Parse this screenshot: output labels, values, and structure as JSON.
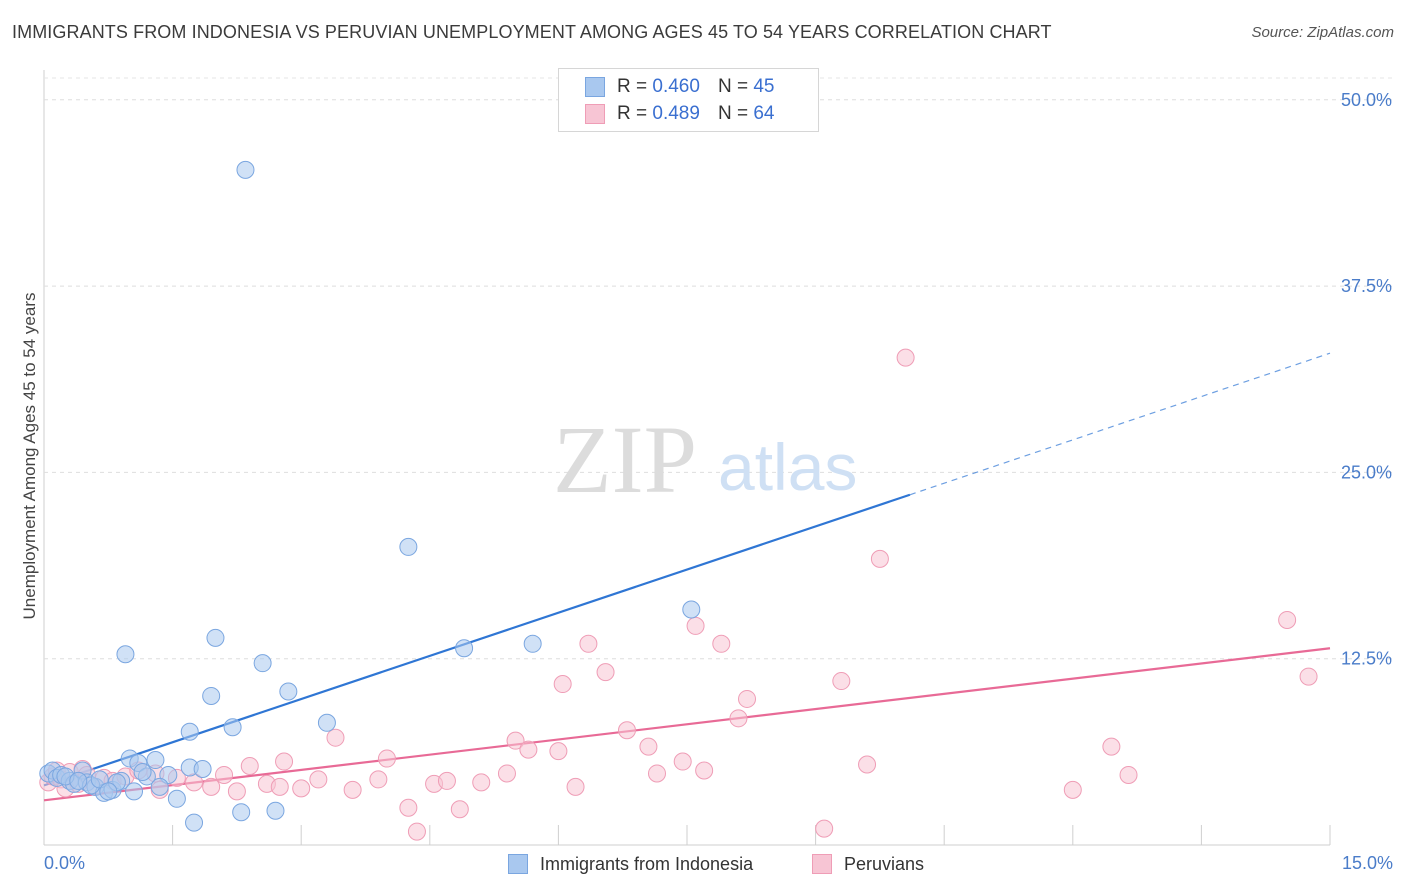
{
  "header": {
    "title": "IMMIGRANTS FROM INDONESIA VS PERUVIAN UNEMPLOYMENT AMONG AGES 45 TO 54 YEARS CORRELATION CHART",
    "source": "Source: ZipAtlas.com"
  },
  "watermark": {
    "zip": "ZIP",
    "atlas": "atlas"
  },
  "legend": {
    "rows": [
      {
        "r_label": "R =",
        "r_value": "0.460",
        "n_label": "N =",
        "n_value": "45"
      },
      {
        "r_label": "R =",
        "r_value": "0.489",
        "n_label": "N =",
        "n_value": "64"
      }
    ]
  },
  "bottom_legend": {
    "series1": "Immigrants from Indonesia",
    "series2": "Peruvians"
  },
  "colors": {
    "blue_fill": "#a9c8ef",
    "blue_stroke": "#7aa6e0",
    "blue_line": "#2f76d4",
    "pink_fill": "#f7c5d4",
    "pink_stroke": "#ef9db6",
    "pink_line": "#e86a96",
    "axis_label": "#4a7cc9"
  },
  "chart_data": {
    "type": "scatter",
    "title": "IMMIGRANTS FROM INDONESIA VS PERUVIAN UNEMPLOYMENT AMONG AGES 45 TO 54 YEARS CORRELATION CHART",
    "xlabel": "",
    "ylabel": "Unemployment Among Ages 45 to 54 years",
    "xlim": [
      0,
      15
    ],
    "ylim": [
      0,
      52
    ],
    "x_tick_labels": [
      "0.0%",
      "15.0%"
    ],
    "y_ticks": [
      12.5,
      25.0,
      37.5,
      50.0
    ],
    "y_tick_labels": [
      "12.5%",
      "25.0%",
      "37.5%",
      "50.0%"
    ],
    "grid": true,
    "series": [
      {
        "name": "Immigrants from Indonesia",
        "color": "#a9c8ef",
        "points": [
          [
            0.05,
            4.8
          ],
          [
            0.1,
            5.0
          ],
          [
            0.15,
            4.5
          ],
          [
            0.2,
            4.7
          ],
          [
            0.3,
            4.3
          ],
          [
            0.35,
            4.1
          ],
          [
            0.45,
            5.0
          ],
          [
            0.5,
            4.2
          ],
          [
            0.6,
            3.9
          ],
          [
            0.7,
            3.5
          ],
          [
            0.8,
            3.7
          ],
          [
            0.9,
            4.3
          ],
          [
            1.0,
            5.8
          ],
          [
            1.05,
            3.6
          ],
          [
            1.1,
            5.5
          ],
          [
            1.2,
            4.6
          ],
          [
            1.3,
            5.7
          ],
          [
            1.45,
            4.7
          ],
          [
            1.55,
            3.1
          ],
          [
            1.7,
            5.2
          ],
          [
            1.75,
            1.5
          ],
          [
            1.95,
            10.0
          ],
          [
            2.0,
            13.9
          ],
          [
            2.2,
            7.9
          ],
          [
            2.3,
            2.2
          ],
          [
            2.55,
            12.2
          ],
          [
            2.7,
            2.3
          ],
          [
            2.85,
            10.3
          ],
          [
            3.3,
            8.2
          ],
          [
            4.25,
            20.0
          ],
          [
            4.9,
            13.2
          ],
          [
            5.7,
            13.5
          ],
          [
            7.55,
            15.8
          ],
          [
            2.35,
            45.3
          ],
          [
            0.95,
            12.8
          ],
          [
            1.7,
            7.6
          ],
          [
            1.85,
            5.1
          ],
          [
            0.25,
            4.6
          ],
          [
            0.55,
            4.0
          ],
          [
            0.65,
            4.4
          ],
          [
            0.85,
            4.2
          ],
          [
            1.15,
            4.9
          ],
          [
            0.4,
            4.3
          ],
          [
            1.35,
            3.9
          ],
          [
            0.75,
            3.6
          ]
        ],
        "trend": {
          "x": [
            0.0,
            10.1
          ],
          "y": [
            4.0,
            23.5
          ],
          "dashed_extension": {
            "x": [
              10.1,
              15.0
            ],
            "y": [
              23.5,
              33.0
            ]
          }
        }
      },
      {
        "name": "Peruvians",
        "color": "#f7c5d4",
        "points": [
          [
            0.05,
            4.2
          ],
          [
            0.1,
            4.6
          ],
          [
            0.15,
            5.0
          ],
          [
            0.2,
            4.4
          ],
          [
            0.25,
            3.8
          ],
          [
            0.3,
            4.9
          ],
          [
            0.4,
            4.1
          ],
          [
            0.45,
            5.1
          ],
          [
            0.5,
            4.7
          ],
          [
            0.6,
            3.9
          ],
          [
            0.7,
            4.5
          ],
          [
            0.8,
            4.3
          ],
          [
            0.95,
            4.6
          ],
          [
            1.1,
            5.0
          ],
          [
            1.3,
            4.8
          ],
          [
            1.35,
            3.7
          ],
          [
            1.55,
            4.5
          ],
          [
            1.75,
            4.2
          ],
          [
            1.95,
            3.9
          ],
          [
            2.1,
            4.7
          ],
          [
            2.25,
            3.6
          ],
          [
            2.4,
            5.3
          ],
          [
            2.6,
            4.1
          ],
          [
            2.75,
            3.9
          ],
          [
            2.8,
            5.6
          ],
          [
            3.0,
            3.8
          ],
          [
            3.2,
            4.4
          ],
          [
            3.4,
            7.2
          ],
          [
            3.6,
            3.7
          ],
          [
            3.9,
            4.4
          ],
          [
            4.0,
            5.8
          ],
          [
            4.25,
            2.5
          ],
          [
            4.35,
            0.9
          ],
          [
            4.55,
            4.1
          ],
          [
            4.7,
            4.3
          ],
          [
            4.85,
            2.4
          ],
          [
            5.1,
            4.2
          ],
          [
            5.5,
            7.0
          ],
          [
            5.4,
            4.8
          ],
          [
            5.65,
            6.4
          ],
          [
            6.0,
            6.3
          ],
          [
            6.05,
            10.8
          ],
          [
            6.2,
            3.9
          ],
          [
            6.35,
            13.5
          ],
          [
            6.55,
            11.6
          ],
          [
            6.8,
            7.7
          ],
          [
            7.05,
            6.6
          ],
          [
            7.15,
            4.8
          ],
          [
            7.45,
            5.6
          ],
          [
            7.6,
            14.7
          ],
          [
            7.7,
            5.0
          ],
          [
            7.9,
            13.5
          ],
          [
            8.1,
            8.5
          ],
          [
            8.2,
            9.8
          ],
          [
            9.1,
            1.1
          ],
          [
            9.3,
            11.0
          ],
          [
            9.6,
            5.4
          ],
          [
            9.75,
            19.2
          ],
          [
            10.05,
            32.7
          ],
          [
            12.0,
            3.7
          ],
          [
            12.45,
            6.6
          ],
          [
            12.65,
            4.7
          ],
          [
            14.5,
            15.1
          ],
          [
            14.75,
            11.3
          ]
        ],
        "trend": {
          "x": [
            0.0,
            15.0
          ],
          "y": [
            3.0,
            13.2
          ]
        }
      }
    ]
  }
}
